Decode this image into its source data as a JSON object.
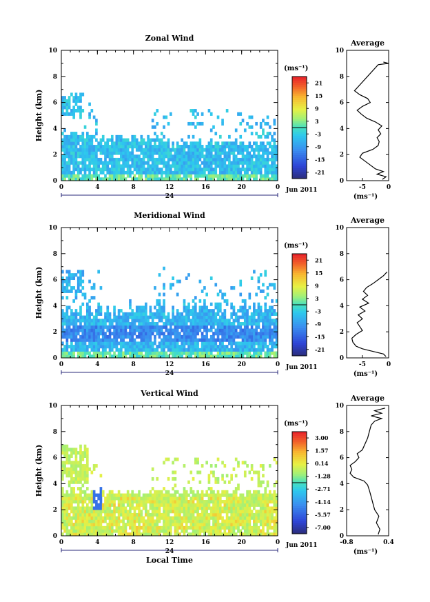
{
  "chart_data": [
    {
      "type": "heatmap",
      "title": "Zonal Wind",
      "xlabel": "",
      "ylabel": "Height (km)",
      "x_ticks": [
        "0",
        "4",
        "8",
        "12",
        "16",
        "20",
        "0"
      ],
      "y_ticks": [
        "0",
        "2",
        "4",
        "6",
        "8",
        "10"
      ],
      "xlim": [
        0,
        24
      ],
      "ylim": [
        0,
        10
      ],
      "date_label": "24",
      "month_label": "Jun 2011",
      "colorbar": {
        "unit": "(ms⁻¹)",
        "ticks": [
          "21",
          "15",
          "9",
          "3",
          "-3",
          "-9",
          "-15",
          "-21"
        ],
        "range": [
          -24,
          24
        ]
      },
      "profile": {
        "title": "Average",
        "xlabel": "(ms⁻¹)",
        "x_ticks": [
          "-5",
          "0"
        ],
        "xlim": [
          -8,
          0
        ],
        "height": [
          0.1,
          0.3,
          0.5,
          0.7,
          0.9,
          1.2,
          1.5,
          1.8,
          2.1,
          2.4,
          2.7,
          3.0,
          3.3,
          3.6,
          3.9,
          4.2,
          4.5,
          4.8,
          5.1,
          5.4,
          5.7,
          6.0,
          6.3,
          6.6,
          6.9,
          8.9,
          9.0,
          9.1
        ],
        "wind": [
          -1.2,
          -0.5,
          -2.2,
          -1.0,
          -2.5,
          -3.5,
          -4.5,
          -5.5,
          -5.0,
          -3.0,
          -2.0,
          -1.8,
          -2.2,
          -1.5,
          -2.0,
          -1.3,
          -2.5,
          -4.2,
          -5.2,
          -6.0,
          -5.0,
          -3.5,
          -4.0,
          -5.5,
          -6.5,
          -2.0,
          0,
          -1.0
        ]
      }
    },
    {
      "type": "heatmap",
      "title": "Meridional Wind",
      "xlabel": "",
      "ylabel": "Height (km)",
      "x_ticks": [
        "0",
        "4",
        "8",
        "12",
        "16",
        "20",
        "0"
      ],
      "y_ticks": [
        "0",
        "2",
        "4",
        "6",
        "8",
        "10"
      ],
      "xlim": [
        0,
        24
      ],
      "ylim": [
        0,
        10
      ],
      "date_label": "24",
      "month_label": "Jun 2011",
      "colorbar": {
        "unit": "(ms⁻¹)",
        "ticks": [
          "21",
          "15",
          "9",
          "3",
          "-3",
          "-9",
          "-15",
          "-21"
        ],
        "range": [
          -24,
          24
        ]
      },
      "profile": {
        "title": "Average",
        "xlabel": "(ms⁻¹)",
        "x_ticks": [
          "-5",
          "0"
        ],
        "xlim": [
          -8,
          0
        ],
        "height": [
          0.1,
          0.3,
          0.5,
          0.7,
          0.9,
          1.2,
          1.5,
          1.8,
          2.1,
          2.4,
          2.7,
          3.0,
          3.3,
          3.6,
          3.9,
          4.2,
          4.5,
          4.8,
          5.1,
          5.4,
          5.7,
          6.0,
          6.3,
          6.6
        ],
        "wind": [
          -0.5,
          -1.0,
          -3.0,
          -5.0,
          -6.2,
          -6.8,
          -7.0,
          -6.2,
          -5.0,
          -5.5,
          -6.0,
          -5.0,
          -5.8,
          -4.5,
          -5.5,
          -3.8,
          -5.0,
          -4.0,
          -4.8,
          -4.2,
          -3.0,
          -2.0,
          -1.0,
          -0.3
        ]
      }
    },
    {
      "type": "heatmap",
      "title": "Vertical Wind",
      "xlabel": "Local Time",
      "ylabel": "Height (km)",
      "x_ticks": [
        "0",
        "4",
        "8",
        "12",
        "16",
        "20",
        "0"
      ],
      "y_ticks": [
        "0",
        "2",
        "4",
        "6",
        "8",
        "10"
      ],
      "xlim": [
        0,
        24
      ],
      "ylim": [
        0,
        10
      ],
      "date_label": "24",
      "month_label": "Jun 2011",
      "colorbar": {
        "unit": "(ms⁻¹)",
        "ticks": [
          "3.00",
          "1.57",
          "0.14",
          "-1.28",
          "-2.71",
          "-4.14",
          "-5.57",
          "-7.00"
        ],
        "range": [
          -7.7,
          3.7
        ]
      },
      "profile": {
        "title": "Average",
        "xlabel": "(ms⁻¹)",
        "x_ticks": [
          "-0.8",
          "0.4"
        ],
        "xlim": [
          -0.8,
          0.4
        ],
        "height": [
          0.1,
          0.5,
          1.0,
          1.5,
          2.0,
          2.5,
          3.0,
          3.5,
          3.9,
          4.2,
          4.5,
          4.8,
          5.1,
          5.4,
          5.7,
          6.0,
          6.3,
          6.6,
          6.9,
          7.2,
          7.5,
          8.0,
          8.5,
          8.8,
          9.0,
          9.2,
          9.4,
          9.6,
          9.8
        ],
        "wind": [
          0.1,
          0.15,
          0.05,
          0.12,
          0.0,
          -0.05,
          -0.1,
          -0.15,
          -0.2,
          -0.3,
          -0.6,
          -0.7,
          -0.65,
          -0.7,
          -0.55,
          -0.45,
          -0.5,
          -0.35,
          -0.3,
          -0.25,
          -0.2,
          -0.15,
          -0.1,
          0.0,
          0.2,
          -0.1,
          0.2,
          0.0,
          0.3
        ]
      }
    }
  ]
}
